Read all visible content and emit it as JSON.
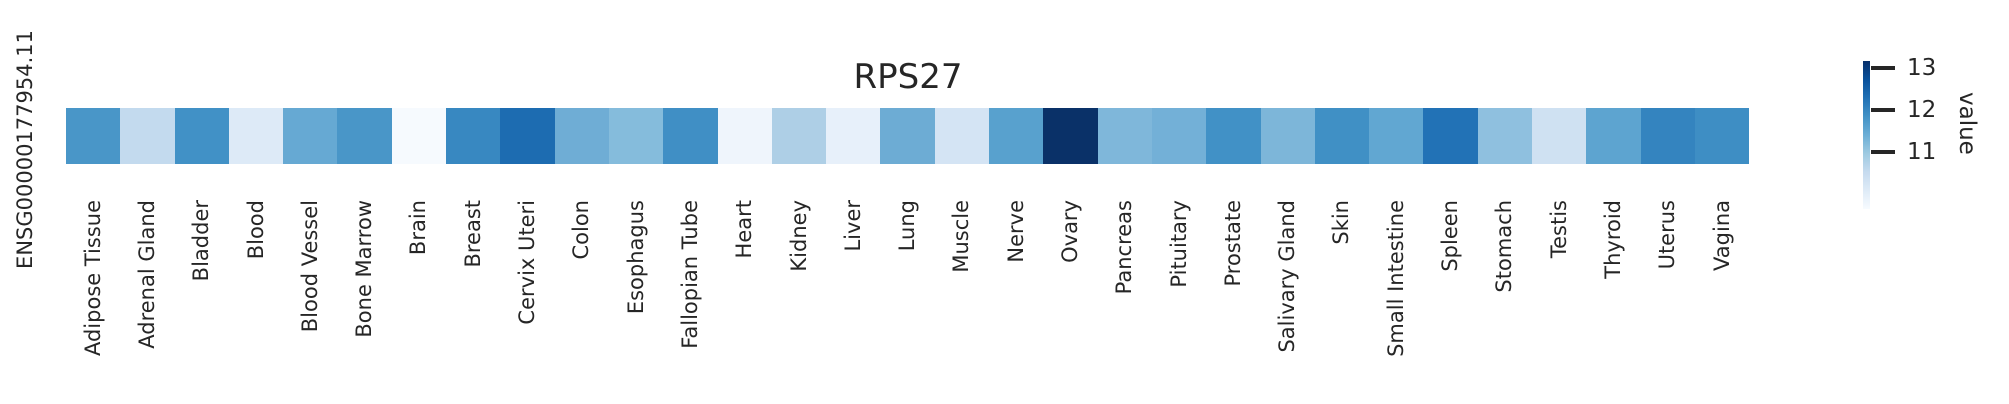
{
  "figure": {
    "title": "RPS27",
    "row_label": "ENSG00000177954.11",
    "colorbar": {
      "label": "value",
      "ticks": [
        "13",
        "12",
        "11"
      ],
      "gradient_stops": [
        "#08306b",
        "#08519c",
        "#2171b5",
        "#4292c6",
        "#6baed6",
        "#9ecae1",
        "#c6dbef",
        "#deebf7",
        "#f7fbff"
      ]
    }
  },
  "chart_data": {
    "type": "heatmap",
    "title": "RPS27",
    "rows": [
      "ENSG00000177954.11"
    ],
    "categories": [
      "Adipose Tissue",
      "Adrenal Gland",
      "Bladder",
      "Blood",
      "Blood Vessel",
      "Bone Marrow",
      "Brain",
      "Breast",
      "Cervix Uteri",
      "Colon",
      "Esophagus",
      "Fallopian Tube",
      "Heart",
      "Kidney",
      "Liver",
      "Lung",
      "Muscle",
      "Nerve",
      "Ovary",
      "Pancreas",
      "Pituitary",
      "Prostate",
      "Salivary Gland",
      "Skin",
      "Small Intestine",
      "Spleen",
      "Stomach",
      "Testis",
      "Thyroid",
      "Uterus",
      "Vagina"
    ],
    "values": [
      [
        11.8,
        10.6,
        11.9,
        10.1,
        11.5,
        11.8,
        9.7,
        12.0,
        12.3,
        11.4,
        11.2,
        11.9,
        9.8,
        10.8,
        10.0,
        11.4,
        10.3,
        11.6,
        13.1,
        11.2,
        11.3,
        11.8,
        11.3,
        11.9,
        11.5,
        12.3,
        11.1,
        10.4,
        11.6,
        12.0,
        11.9
      ]
    ],
    "cell_colors": [
      "#4996c8",
      "#c3daee",
      "#4191c6",
      "#ddeaf7",
      "#66a9d3",
      "#4996c8",
      "#f6fafe",
      "#3888c1",
      "#1d6cb1",
      "#6fadd5",
      "#85bcdc",
      "#408fc5",
      "#eff5fc",
      "#aecfe6",
      "#e7f0fa",
      "#6dacd4",
      "#d4e4f4",
      "#58a1ce",
      "#0a3168",
      "#7fb7da",
      "#73b0d7",
      "#4191c6",
      "#7db6d9",
      "#4090c5",
      "#61a7d2",
      "#2272b6",
      "#8fc0df",
      "#cfe1f2",
      "#5da4d0",
      "#3484bf",
      "#3e8ec4"
    ],
    "colormap": "Blues",
    "colorbar_label": "value",
    "colorbar_ticks": [
      11,
      12,
      13
    ],
    "vmin": 9.7,
    "vmax": 13.1,
    "legend_position": "right",
    "grid": false
  }
}
